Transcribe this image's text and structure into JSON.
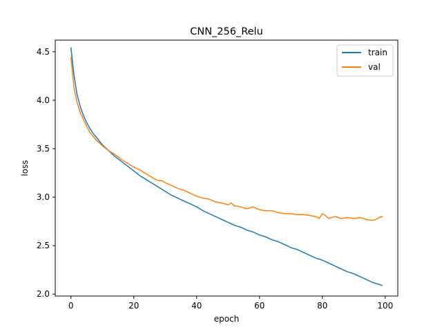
{
  "chart_data": {
    "type": "line",
    "title": "CNN_256_Relu",
    "xlabel": "epoch",
    "ylabel": "loss",
    "xlim": [
      -5,
      104
    ],
    "ylim": [
      1.98,
      4.62
    ],
    "xticks": [
      0,
      20,
      40,
      60,
      80,
      100
    ],
    "yticks": [
      2.0,
      2.5,
      3.0,
      3.5,
      4.0,
      4.5
    ],
    "grid": false,
    "legend_position": "top-right",
    "series": [
      {
        "name": "train",
        "color": "#1f77b4",
        "x": [
          0,
          1,
          2,
          3,
          4,
          5,
          6,
          7,
          8,
          9,
          10,
          12,
          14,
          16,
          18,
          20,
          22,
          24,
          26,
          28,
          30,
          32,
          34,
          36,
          38,
          40,
          42,
          44,
          46,
          48,
          50,
          52,
          54,
          56,
          58,
          60,
          62,
          64,
          66,
          68,
          70,
          72,
          74,
          76,
          78,
          80,
          82,
          84,
          86,
          88,
          90,
          92,
          94,
          96,
          98,
          99
        ],
        "y": [
          4.54,
          4.25,
          4.05,
          3.93,
          3.84,
          3.77,
          3.71,
          3.66,
          3.62,
          3.58,
          3.54,
          3.48,
          3.42,
          3.37,
          3.32,
          3.27,
          3.22,
          3.18,
          3.14,
          3.1,
          3.06,
          3.02,
          2.99,
          2.96,
          2.93,
          2.9,
          2.86,
          2.83,
          2.8,
          2.77,
          2.74,
          2.71,
          2.69,
          2.66,
          2.64,
          2.61,
          2.59,
          2.56,
          2.54,
          2.51,
          2.48,
          2.46,
          2.43,
          2.4,
          2.37,
          2.35,
          2.32,
          2.29,
          2.26,
          2.23,
          2.21,
          2.18,
          2.15,
          2.12,
          2.1,
          2.09
        ]
      },
      {
        "name": "val",
        "color": "#ff7f0e",
        "x": [
          0,
          1,
          2,
          3,
          4,
          5,
          6,
          7,
          8,
          9,
          10,
          12,
          14,
          16,
          18,
          20,
          22,
          24,
          26,
          27,
          28,
          29,
          30,
          32,
          34,
          36,
          38,
          40,
          42,
          44,
          46,
          48,
          50,
          51,
          52,
          54,
          56,
          58,
          60,
          62,
          64,
          66,
          68,
          70,
          72,
          74,
          76,
          78,
          79,
          80,
          81,
          82,
          84,
          86,
          88,
          90,
          92,
          94,
          96,
          97,
          98,
          99
        ],
        "y": [
          4.44,
          4.12,
          3.97,
          3.87,
          3.8,
          3.73,
          3.67,
          3.63,
          3.59,
          3.56,
          3.53,
          3.48,
          3.44,
          3.39,
          3.35,
          3.31,
          3.28,
          3.24,
          3.2,
          3.18,
          3.17,
          3.17,
          3.15,
          3.12,
          3.09,
          3.07,
          3.04,
          3.01,
          2.99,
          2.98,
          2.95,
          2.94,
          2.92,
          2.94,
          2.91,
          2.9,
          2.88,
          2.9,
          2.87,
          2.86,
          2.86,
          2.84,
          2.83,
          2.83,
          2.82,
          2.82,
          2.81,
          2.8,
          2.78,
          2.83,
          2.81,
          2.78,
          2.8,
          2.78,
          2.79,
          2.78,
          2.79,
          2.77,
          2.76,
          2.77,
          2.79,
          2.8
        ]
      }
    ]
  }
}
